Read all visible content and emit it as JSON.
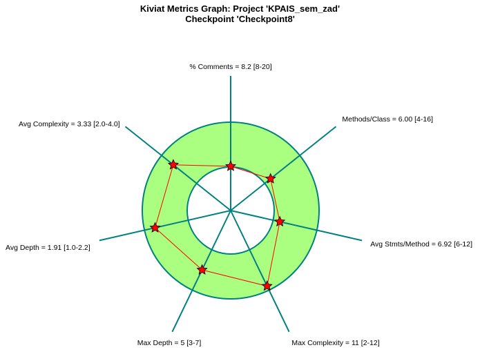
{
  "title_line1": "Kiviat Metrics Graph: Project 'KPAIS_sem_zad'",
  "title_line2": "Checkpoint 'Checkpoint8'",
  "colors": {
    "band_fill": "#aaff80",
    "axis": "#008080",
    "polygon": "#ff0000",
    "marker": "#ff0000"
  },
  "chart_data": {
    "type": "radar",
    "title": "Kiviat Metrics Graph: Project 'KPAIS_sem_zad'",
    "subtitle": "Checkpoint 'Checkpoint8'",
    "axes": [
      {
        "label": "% Comments = 8.2 [8-20]",
        "value": 8.2,
        "min": 8,
        "max": 20
      },
      {
        "label": "Methods/Class = 6.00 [4-16]",
        "value": 6.0,
        "min": 4,
        "max": 16
      },
      {
        "label": "Avg Stmts/Method = 6.92 [6-12]",
        "value": 6.92,
        "min": 6,
        "max": 12
      },
      {
        "label": "Max Complexity = 11 [2-12]",
        "value": 11,
        "min": 2,
        "max": 12
      },
      {
        "label": "Max Depth = 5 [3-7]",
        "value": 5,
        "min": 3,
        "max": 7
      },
      {
        "label": "Avg Depth = 1.91 [1.0-2.2]",
        "value": 1.91,
        "min": 1.0,
        "max": 2.2
      },
      {
        "label": "Avg Complexity = 3.33 [2.0-4.0]",
        "value": 3.33,
        "min": 2.0,
        "max": 4.0
      }
    ]
  }
}
